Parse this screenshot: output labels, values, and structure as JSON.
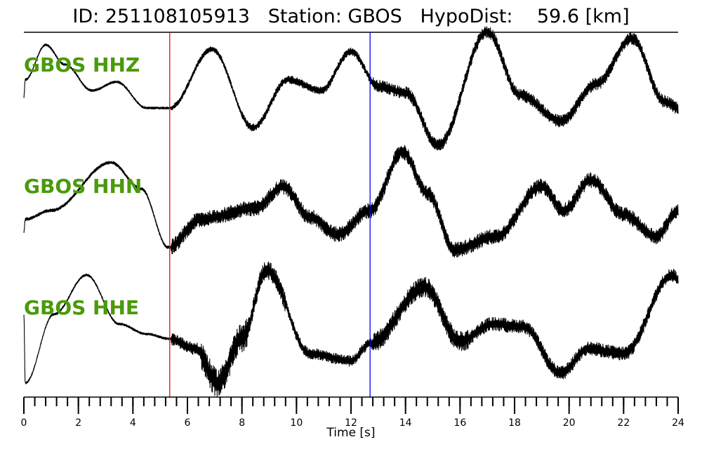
{
  "title": {
    "id_label": "ID:",
    "id_value": "251108105913",
    "station_label": "Station:",
    "station_value": "GBOS",
    "dist_label": "HypoDist:",
    "dist_value": "59.6",
    "dist_unit": "[km]"
  },
  "chart_data": {
    "type": "line",
    "xlabel": "Time [s]",
    "xlim": [
      0,
      24
    ],
    "xticks": [
      0,
      2,
      4,
      6,
      8,
      10,
      12,
      14,
      16,
      18,
      20,
      22,
      24
    ],
    "minor_tick_step": 0.4,
    "markers": [
      {
        "name": "P-pick",
        "time": 5.35,
        "color": "#ff0000"
      },
      {
        "name": "S-pick",
        "time": 12.7,
        "color": "#0000ff"
      }
    ],
    "label_color": "#4a9a0a",
    "series": [
      {
        "name": "GBOS HHZ",
        "noise": [
          [
            0,
            5.4,
            0.15
          ],
          [
            5.4,
            8,
            0.35
          ],
          [
            8,
            12.8,
            0.5
          ],
          [
            12.8,
            24,
            0.8
          ]
        ],
        "points": [
          [
            0,
            -0.2
          ],
          [
            0.05,
            0.2
          ],
          [
            0.8,
            1.0
          ],
          [
            1.5,
            0.55
          ],
          [
            2.5,
            -0.05
          ],
          [
            3.4,
            0.15
          ],
          [
            4.5,
            -0.45
          ],
          [
            5.35,
            -0.45
          ],
          [
            6.9,
            0.9
          ],
          [
            8.4,
            -0.9
          ],
          [
            9.7,
            0.2
          ],
          [
            10.9,
            -0.05
          ],
          [
            12.0,
            0.85
          ],
          [
            13.0,
            0.05
          ],
          [
            14.0,
            -0.1
          ],
          [
            15.2,
            -1.3
          ],
          [
            17.0,
            1.3
          ],
          [
            18.2,
            -0.15
          ],
          [
            19.7,
            -0.75
          ],
          [
            21.0,
            0.1
          ],
          [
            22.3,
            1.15
          ],
          [
            23.5,
            -0.3
          ],
          [
            24,
            -0.45
          ]
        ]
      },
      {
        "name": "GBOS HHN",
        "noise": [
          [
            0,
            5.4,
            0.2
          ],
          [
            5.4,
            12.8,
            1.0
          ],
          [
            12.8,
            24,
            1.0
          ]
        ],
        "points": [
          [
            0,
            -0.5
          ],
          [
            0.05,
            -0.2
          ],
          [
            1.0,
            0.0
          ],
          [
            3.2,
            1.1
          ],
          [
            4.3,
            0.5
          ],
          [
            5.3,
            -0.85
          ],
          [
            6.5,
            -0.2
          ],
          [
            8.5,
            0.05
          ],
          [
            9.5,
            0.55
          ],
          [
            10.5,
            -0.15
          ],
          [
            11.5,
            -0.55
          ],
          [
            12.7,
            0.0
          ],
          [
            13.9,
            1.35
          ],
          [
            14.8,
            0.4
          ],
          [
            15.8,
            -0.9
          ],
          [
            17.3,
            -0.6
          ],
          [
            19.0,
            0.55
          ],
          [
            19.8,
            0.0
          ],
          [
            20.8,
            0.7
          ],
          [
            22.0,
            -0.1
          ],
          [
            23.2,
            -0.6
          ],
          [
            24,
            0.0
          ]
        ]
      },
      {
        "name": "GBOS HHE",
        "noise": [
          [
            0,
            5.4,
            0.15
          ],
          [
            5.4,
            6.5,
            0.8
          ],
          [
            6.5,
            8.2,
            1.9
          ],
          [
            8.2,
            9.6,
            1.2
          ],
          [
            9.6,
            12.8,
            0.7
          ],
          [
            12.8,
            16.3,
            1.3
          ],
          [
            16.3,
            24,
            0.9
          ]
        ],
        "points": [
          [
            0,
            0.4
          ],
          [
            0.05,
            -1.0
          ],
          [
            1.1,
            0.4
          ],
          [
            2.3,
            1.2
          ],
          [
            3.5,
            0.2
          ],
          [
            4.5,
            0.0
          ],
          [
            5.35,
            -0.1
          ],
          [
            6.3,
            -0.3
          ],
          [
            7.1,
            -1.0
          ],
          [
            8.0,
            -0.1
          ],
          [
            8.9,
            1.3
          ],
          [
            10.5,
            -0.4
          ],
          [
            12.0,
            -0.55
          ],
          [
            12.7,
            -0.2
          ],
          [
            14.7,
            0.95
          ],
          [
            16.0,
            -0.15
          ],
          [
            17.2,
            0.2
          ],
          [
            18.3,
            0.15
          ],
          [
            19.7,
            -0.8
          ],
          [
            20.7,
            -0.3
          ],
          [
            22.0,
            -0.4
          ],
          [
            23.8,
            1.2
          ],
          [
            24,
            1.1
          ]
        ]
      }
    ]
  }
}
